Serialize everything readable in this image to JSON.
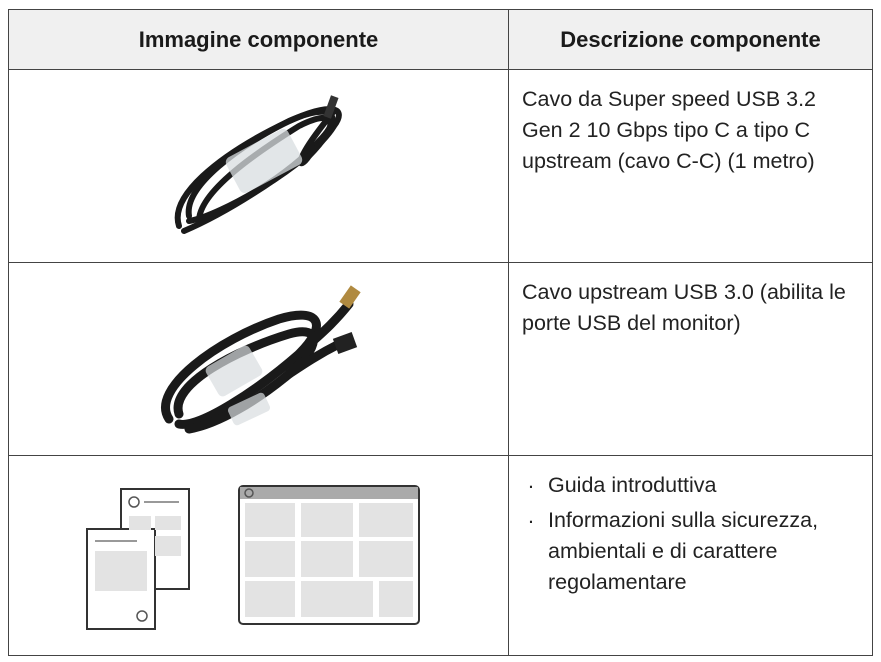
{
  "table": {
    "headers": [
      "Immagine componente",
      "Descrizione componente"
    ],
    "rows": [
      {
        "description": "Cavo da Super speed USB 3.2 Gen 2 10 Gbps tipo C a tipo C upstream (cavo C-C) (1 metro)"
      },
      {
        "description": "Cavo upstream USB 3.0 (abilita le porte USB del monitor)"
      },
      {
        "items": [
          "Guida introduttiva",
          "Informazioni sulla sicurezza, ambientali e di carattere regolamentare"
        ]
      }
    ]
  }
}
